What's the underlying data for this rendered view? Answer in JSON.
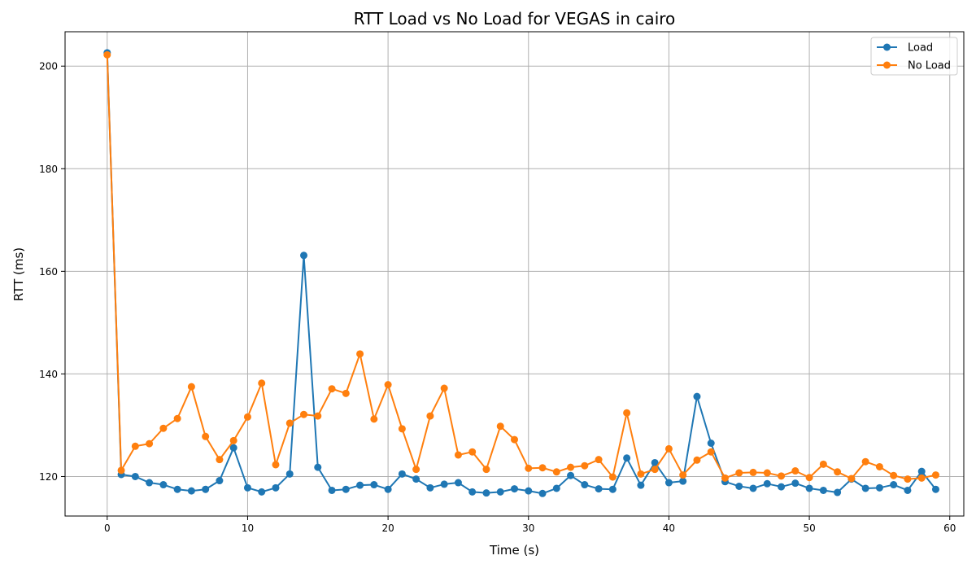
{
  "chart_data": {
    "type": "line",
    "title": "RTT Load vs No Load for VEGAS in cairo",
    "xlabel": "Time (s)",
    "ylabel": "RTT (ms)",
    "xlim": [
      -3,
      61
    ],
    "ylim": [
      112.3,
      206.7
    ],
    "xticks": [
      0,
      10,
      20,
      30,
      40,
      50,
      60
    ],
    "yticks": [
      120,
      140,
      160,
      180,
      200
    ],
    "grid": true,
    "legend_position": "top-right",
    "x": [
      0,
      1,
      2,
      3,
      4,
      5,
      6,
      7,
      8,
      9,
      10,
      11,
      12,
      13,
      14,
      15,
      16,
      17,
      18,
      19,
      20,
      21,
      22,
      23,
      24,
      25,
      26,
      27,
      28,
      29,
      30,
      31,
      32,
      33,
      34,
      35,
      36,
      37,
      38,
      39,
      40,
      41,
      42,
      43,
      44,
      45,
      46,
      47,
      48,
      49,
      50,
      51,
      52,
      53,
      54,
      55,
      56,
      57,
      58,
      59
    ],
    "series": [
      {
        "name": "Load",
        "color": "#1f77b4",
        "values": [
          202.6,
          120.4,
          120.0,
          118.8,
          118.4,
          117.5,
          117.2,
          117.5,
          119.2,
          125.6,
          117.8,
          117.0,
          117.8,
          120.5,
          163.1,
          121.8,
          117.3,
          117.5,
          118.3,
          118.4,
          117.5,
          120.5,
          119.5,
          117.8,
          118.5,
          118.8,
          117.0,
          116.8,
          117.0,
          117.6,
          117.2,
          116.7,
          117.7,
          120.2,
          118.4,
          117.6,
          117.5,
          123.6,
          118.3,
          122.7,
          118.8,
          119.1,
          135.6,
          126.5,
          119.0,
          118.1,
          117.7,
          118.6,
          118.0,
          118.7,
          117.7,
          117.3,
          116.9,
          119.5,
          117.7,
          117.8,
          118.4,
          117.3,
          121.0,
          117.5
        ]
      },
      {
        "name": "No Load",
        "color": "#ff7f0e",
        "values": [
          202.2,
          121.2,
          125.9,
          126.4,
          129.4,
          131.3,
          137.5,
          127.8,
          123.3,
          127.0,
          131.6,
          138.2,
          122.3,
          130.4,
          132.1,
          131.8,
          137.1,
          136.2,
          143.9,
          131.2,
          137.9,
          129.3,
          121.4,
          131.8,
          137.2,
          124.2,
          124.8,
          121.4,
          129.8,
          127.2,
          121.6,
          121.7,
          120.9,
          121.8,
          122.1,
          123.3,
          119.9,
          132.4,
          120.5,
          121.4,
          125.4,
          120.3,
          123.2,
          124.8,
          119.7,
          120.7,
          120.8,
          120.7,
          120.1,
          121.1,
          119.8,
          122.4,
          120.9,
          119.6,
          122.9,
          121.9,
          120.2,
          119.5,
          119.7,
          120.3
        ]
      }
    ]
  }
}
